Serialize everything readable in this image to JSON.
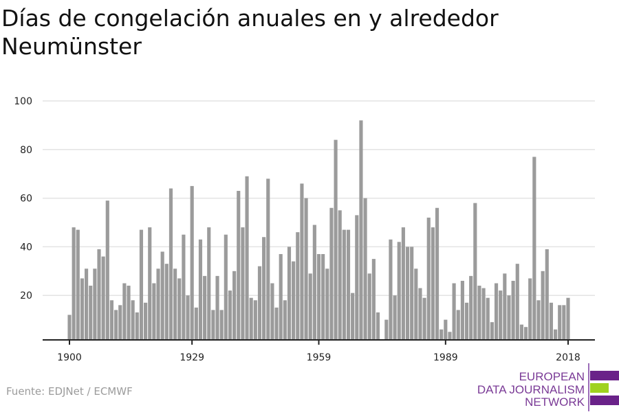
{
  "chart_data": {
    "type": "bar",
    "title_lines": [
      "Días de congelación anuales en y alrededor",
      "Neumünster"
    ],
    "xlabel": "",
    "ylabel": "",
    "ylim": [
      0,
      100
    ],
    "yticks": [
      20,
      40,
      60,
      80,
      100
    ],
    "xticks": [
      1900,
      1929,
      1959,
      1989,
      2018
    ],
    "grid": true,
    "x": [
      1900,
      1901,
      1902,
      1903,
      1904,
      1905,
      1906,
      1907,
      1908,
      1909,
      1910,
      1911,
      1912,
      1913,
      1914,
      1915,
      1916,
      1917,
      1918,
      1919,
      1920,
      1921,
      1922,
      1923,
      1924,
      1925,
      1926,
      1927,
      1928,
      1929,
      1930,
      1931,
      1932,
      1933,
      1934,
      1935,
      1936,
      1937,
      1938,
      1939,
      1940,
      1941,
      1942,
      1943,
      1944,
      1945,
      1946,
      1947,
      1948,
      1949,
      1950,
      1951,
      1952,
      1953,
      1954,
      1955,
      1956,
      1957,
      1958,
      1959,
      1960,
      1961,
      1962,
      1963,
      1964,
      1965,
      1966,
      1967,
      1968,
      1969,
      1970,
      1971,
      1972,
      1973,
      1974,
      1975,
      1976,
      1977,
      1978,
      1979,
      1980,
      1981,
      1982,
      1983,
      1984,
      1985,
      1986,
      1987,
      1988,
      1989,
      1990,
      1991,
      1992,
      1993,
      1994,
      1995,
      1996,
      1997,
      1998,
      1999,
      2000,
      2001,
      2002,
      2003,
      2004,
      2005,
      2006,
      2007,
      2008,
      2009,
      2010,
      2011,
      2012,
      2013,
      2014,
      2015,
      2016,
      2017,
      2018
    ],
    "values": [
      12,
      48,
      47,
      27,
      31,
      24,
      31,
      39,
      36,
      59,
      18,
      14,
      16,
      25,
      24,
      18,
      13,
      47,
      17,
      48,
      25,
      31,
      38,
      33,
      64,
      31,
      27,
      45,
      20,
      65,
      15,
      43,
      28,
      48,
      14,
      28,
      14,
      45,
      22,
      30,
      63,
      48,
      69,
      19,
      18,
      32,
      44,
      68,
      25,
      15,
      37,
      18,
      40,
      34,
      46,
      66,
      60,
      29,
      49,
      37,
      37,
      31,
      56,
      84,
      55,
      47,
      47,
      21,
      53,
      92,
      60,
      29,
      35,
      13,
      0,
      10,
      43,
      20,
      42,
      48,
      40,
      40,
      31,
      23,
      19,
      52,
      48,
      56,
      6,
      10,
      5,
      25,
      14,
      26,
      17,
      28,
      58,
      24,
      23,
      19,
      9,
      25,
      22,
      29,
      20,
      26,
      33,
      8,
      7,
      27,
      77,
      18,
      30,
      39,
      17,
      6,
      16,
      16,
      19
    ],
    "colors": {
      "bar": "#9b9b9b",
      "grid": "#e3e3e3",
      "axis": "#222222"
    }
  },
  "source": "Fuente: EDJNet / ECMWF",
  "logo": {
    "lines": [
      "EUROPEAN",
      "DATA JOURNALISM",
      "NETWORK"
    ],
    "colors": {
      "purple": "#6a2289",
      "green": "#9fd21f"
    }
  }
}
